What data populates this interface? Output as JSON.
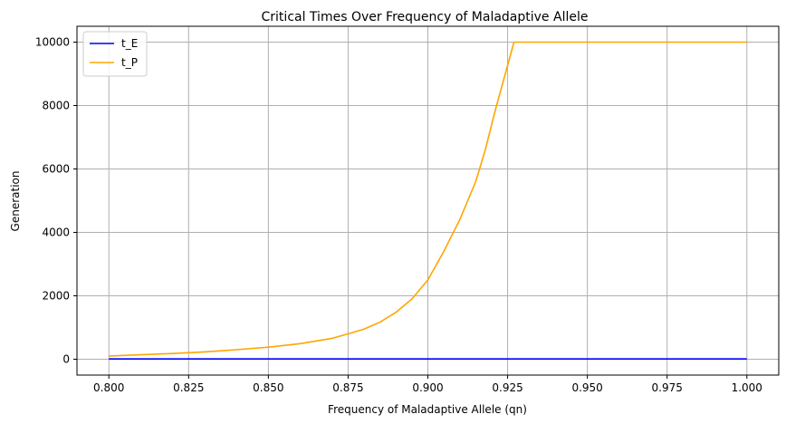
{
  "chart_data": {
    "type": "line",
    "title": "Critical Times Over Frequency of Maladaptive Allele",
    "xlabel": "Frequency of Maladaptive Allele (qn)",
    "ylabel": "Generation",
    "xlim": [
      0.79,
      1.01
    ],
    "ylim": [
      -500,
      10500
    ],
    "xticks": [
      0.8,
      0.825,
      0.85,
      0.875,
      0.9,
      0.925,
      0.95,
      0.975,
      1.0
    ],
    "xtick_labels": [
      "0.800",
      "0.825",
      "0.850",
      "0.875",
      "0.900",
      "0.925",
      "0.950",
      "0.975",
      "1.000"
    ],
    "yticks": [
      0,
      2000,
      4000,
      6000,
      8000,
      10000
    ],
    "ytick_labels": [
      "0",
      "2000",
      "4000",
      "6000",
      "8000",
      "10000"
    ],
    "grid": true,
    "legend": "top-left",
    "series": [
      {
        "name": "t_E",
        "color": "#0000ff",
        "x": [
          0.8,
          1.0
        ],
        "y": [
          10,
          10
        ]
      },
      {
        "name": "t_P",
        "color": "#ffa500",
        "x": [
          0.8,
          0.81,
          0.82,
          0.83,
          0.84,
          0.85,
          0.86,
          0.87,
          0.875,
          0.88,
          0.885,
          0.89,
          0.895,
          0.9,
          0.905,
          0.91,
          0.915,
          0.918,
          0.921,
          0.924,
          0.927,
          0.93,
          0.94,
          0.95,
          0.96,
          0.97,
          0.98,
          0.99,
          1.0
        ],
        "y": [
          100,
          140,
          180,
          230,
          300,
          380,
          490,
          660,
          800,
          950,
          1170,
          1480,
          1900,
          2500,
          3400,
          4400,
          5600,
          6600,
          7800,
          8900,
          10000,
          10000,
          10000,
          10000,
          10000,
          10000,
          10000,
          10000,
          10000
        ]
      }
    ]
  }
}
